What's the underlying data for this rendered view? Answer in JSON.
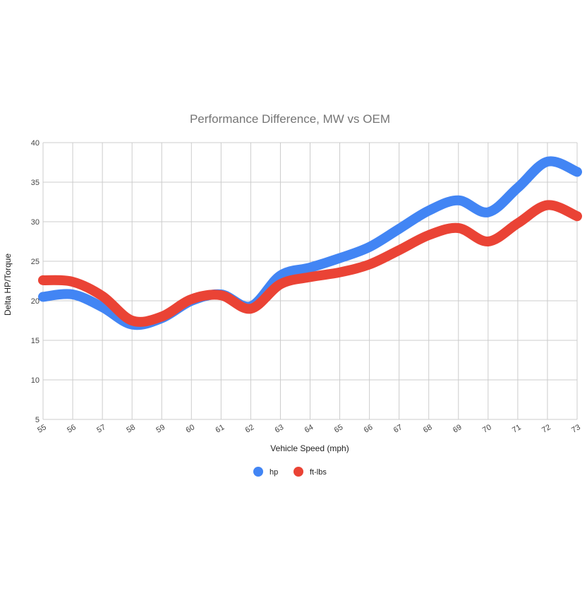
{
  "chart_data": {
    "type": "line",
    "title": "Performance Difference, MW vs OEM",
    "xlabel": "Vehicle Speed (mph)",
    "ylabel": "Delta HP/Torque",
    "x": [
      55,
      56,
      57,
      58,
      59,
      60,
      61,
      62,
      63,
      64,
      65,
      66,
      67,
      68,
      69,
      70,
      71,
      72,
      73
    ],
    "xlim": [
      55,
      73
    ],
    "ylim": [
      5,
      40
    ],
    "yticks": [
      5,
      10,
      15,
      20,
      25,
      30,
      35,
      40
    ],
    "grid": true,
    "legend_position": "bottom",
    "series": [
      {
        "name": "hp",
        "color": "#4285f4",
        "values": [
          20.5,
          20.8,
          19.2,
          17.0,
          17.8,
          20.0,
          20.8,
          19.3,
          23.2,
          24.2,
          25.4,
          26.8,
          29.1,
          31.4,
          32.7,
          31.2,
          34.3,
          37.6,
          36.3
        ]
      },
      {
        "name": "ft-lbs",
        "color": "#ea4335",
        "values": [
          22.6,
          22.4,
          20.6,
          17.5,
          18.0,
          20.2,
          20.7,
          19.0,
          22.1,
          23.0,
          23.6,
          24.6,
          26.4,
          28.3,
          29.2,
          27.5,
          29.8,
          32.1,
          30.7
        ]
      }
    ]
  }
}
